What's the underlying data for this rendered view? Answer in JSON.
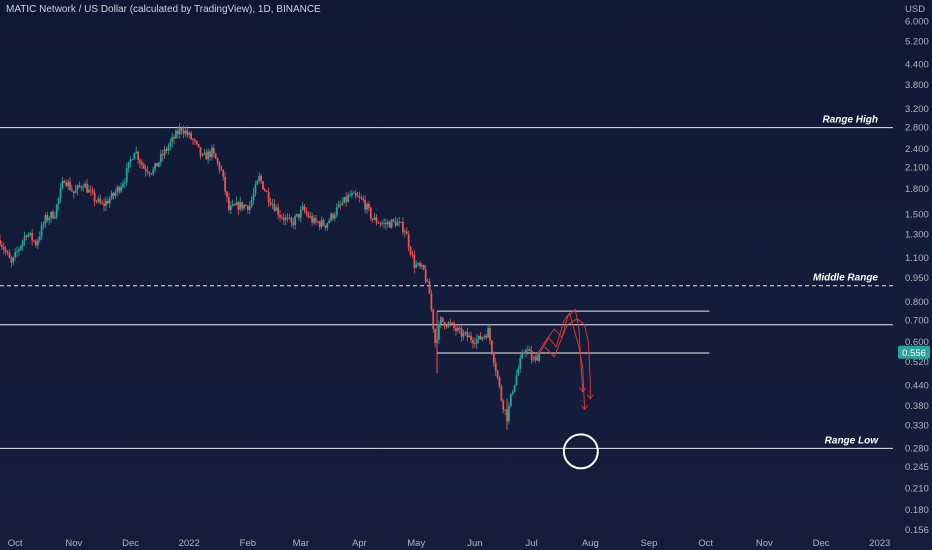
{
  "header": {
    "title": "MATIC Network / US Dollar (calculated by TradingView), 1D, BINANCE"
  },
  "colors": {
    "background": "#131c3a",
    "up": "#26a69a",
    "down": "#ef5350",
    "level_line": "#e8e8e8",
    "sketch": "#e53935",
    "price_badge": "#26a69a"
  },
  "chart_data": {
    "type": "candlestick",
    "y_scale": "log",
    "y_unit": "USD",
    "y_ticks": [
      "6.000",
      "5.200",
      "4.400",
      "3.800",
      "3.200",
      "2.800",
      "2.400",
      "2.100",
      "1.800",
      "1.500",
      "1.300",
      "1.100",
      "0.950",
      "0.800",
      "0.700",
      "0.600",
      "0.520",
      "0.440",
      "0.380",
      "0.330",
      "0.280",
      "0.245",
      "0.210",
      "0.180",
      "0.156"
    ],
    "x_ticks": [
      "Oct",
      "Nov",
      "Dec",
      "2022",
      "Feb",
      "Mar",
      "Apr",
      "May",
      "Jun",
      "Jul",
      "Aug",
      "Sep",
      "Oct",
      "Nov",
      "Dec",
      "2023"
    ],
    "x_range": [
      "2021-09-23",
      "2023-01-08"
    ],
    "y_range": [
      0.145,
      7.0
    ],
    "last_price": "0.556",
    "close_path": [
      [
        "2021-09-23",
        1.25
      ],
      [
        "2021-09-29",
        1.05
      ],
      [
        "2021-10-03",
        1.18
      ],
      [
        "2021-10-07",
        1.32
      ],
      [
        "2021-10-12",
        1.22
      ],
      [
        "2021-10-17",
        1.45
      ],
      [
        "2021-10-22",
        1.52
      ],
      [
        "2021-10-27",
        1.95
      ],
      [
        "2021-11-01",
        1.75
      ],
      [
        "2021-11-06",
        1.88
      ],
      [
        "2021-11-11",
        1.7
      ],
      [
        "2021-11-16",
        1.6
      ],
      [
        "2021-11-22",
        1.72
      ],
      [
        "2021-11-28",
        1.95
      ],
      [
        "2021-12-03",
        2.4
      ],
      [
        "2021-12-08",
        2.1
      ],
      [
        "2021-12-13",
        2.05
      ],
      [
        "2021-12-18",
        2.3
      ],
      [
        "2021-12-24",
        2.6
      ],
      [
        "2021-12-28",
        2.8
      ],
      [
        "2022-01-03",
        2.55
      ],
      [
        "2022-01-08",
        2.25
      ],
      [
        "2022-01-13",
        2.35
      ],
      [
        "2022-01-18",
        2.05
      ],
      [
        "2022-01-22",
        1.55
      ],
      [
        "2022-01-27",
        1.6
      ],
      [
        "2022-02-02",
        1.6
      ],
      [
        "2022-02-07",
        1.95
      ],
      [
        "2022-02-12",
        1.7
      ],
      [
        "2022-02-18",
        1.5
      ],
      [
        "2022-02-24",
        1.4
      ],
      [
        "2022-03-02",
        1.55
      ],
      [
        "2022-03-08",
        1.42
      ],
      [
        "2022-03-14",
        1.4
      ],
      [
        "2022-03-20",
        1.55
      ],
      [
        "2022-03-27",
        1.72
      ],
      [
        "2022-04-03",
        1.65
      ],
      [
        "2022-04-08",
        1.45
      ],
      [
        "2022-04-14",
        1.4
      ],
      [
        "2022-04-20",
        1.42
      ],
      [
        "2022-04-25",
        1.35
      ],
      [
        "2022-04-30",
        1.05
      ],
      [
        "2022-05-05",
        1.0
      ],
      [
        "2022-05-08",
        0.85
      ],
      [
        "2022-05-11",
        0.6
      ],
      [
        "2022-05-14",
        0.7
      ],
      [
        "2022-05-19",
        0.68
      ],
      [
        "2022-05-24",
        0.64
      ],
      [
        "2022-05-29",
        0.62
      ],
      [
        "2022-06-03",
        0.61
      ],
      [
        "2022-06-08",
        0.65
      ],
      [
        "2022-06-12",
        0.5
      ],
      [
        "2022-06-15",
        0.4
      ],
      [
        "2022-06-18",
        0.35
      ],
      [
        "2022-06-21",
        0.43
      ],
      [
        "2022-06-25",
        0.52
      ],
      [
        "2022-06-28",
        0.58
      ],
      [
        "2022-07-02",
        0.52
      ],
      [
        "2022-07-05",
        0.556
      ]
    ],
    "annotations": {
      "horizontal_lines": [
        {
          "label": "Range High",
          "price": 2.8,
          "style": "solid"
        },
        {
          "label": "Middle Range",
          "price": 0.9,
          "style": "dashed"
        },
        {
          "label": "",
          "price": 0.68,
          "style": "solid"
        },
        {
          "label": "Range Low",
          "price": 0.28,
          "style": "solid"
        }
      ],
      "box_lines": [
        {
          "price": 0.75,
          "from": "2022-05-12",
          "to": "2022-10-03"
        },
        {
          "price": 0.555,
          "from": "2022-05-12",
          "to": "2022-10-03"
        }
      ],
      "target_circle": {
        "date": "2022-07-27",
        "price": 0.28
      }
    }
  }
}
